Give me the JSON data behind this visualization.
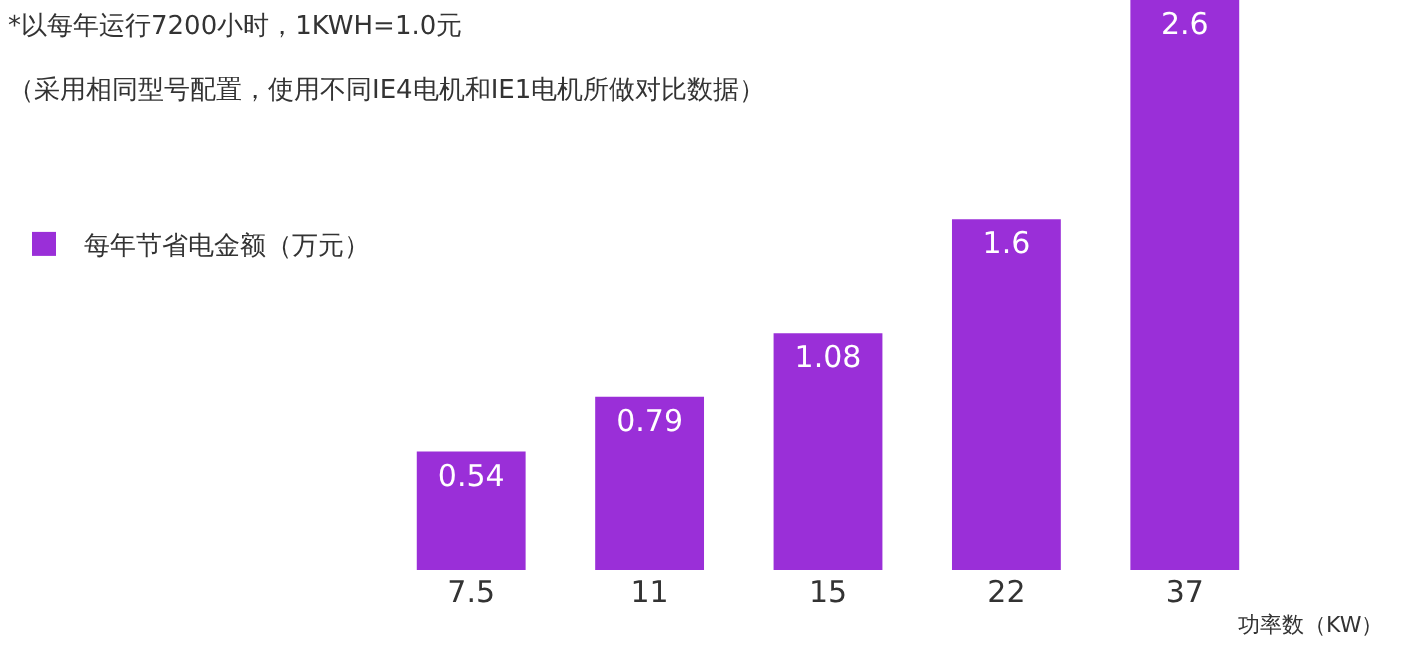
{
  "chart_data": {
    "type": "bar",
    "title": "*以每年运行7200小时，1KWH=1.0元",
    "subtitle": "（采用相同型号配置，使用不同IE4电机和IE1电机所做对比数据）",
    "xlabel": "功率数（KW）",
    "categories": [
      "7.5",
      "11",
      "15",
      "22",
      "37"
    ],
    "series": [
      {
        "name": "每年节省电金额（万元）",
        "color": "#9a2fd8",
        "values": [
          0.54,
          0.79,
          1.08,
          1.6,
          2.6
        ]
      }
    ],
    "data_labels": true,
    "legend": "left",
    "grid": false,
    "tick_labels": "x"
  }
}
